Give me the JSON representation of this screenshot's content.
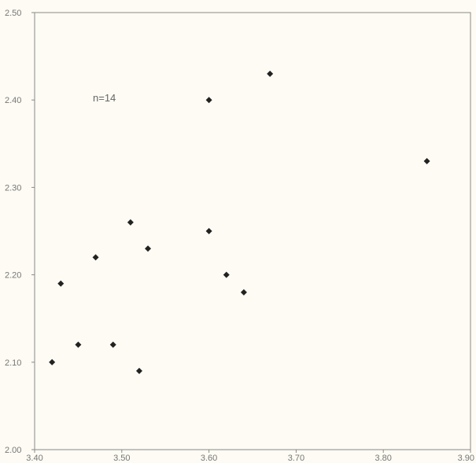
{
  "chart_data": {
    "type": "scatter",
    "title": "",
    "xlabel": "",
    "ylabel": "",
    "annotation": "n=14",
    "xlim": [
      3.4,
      3.9
    ],
    "ylim": [
      2.0,
      2.5
    ],
    "x_ticks": [
      "3.40",
      "3.50",
      "3.60",
      "3.70",
      "3.80",
      "3.90"
    ],
    "y_ticks": [
      "2.00",
      "2.10",
      "2.20",
      "2.30",
      "2.40",
      "2.50"
    ],
    "grid": false,
    "marker_color": "#222222",
    "x": [
      3.42,
      3.43,
      3.45,
      3.47,
      3.49,
      3.51,
      3.52,
      3.53,
      3.6,
      3.6,
      3.62,
      3.64,
      3.67,
      3.85
    ],
    "y": [
      2.1,
      2.19,
      2.12,
      2.22,
      2.12,
      2.26,
      2.09,
      2.23,
      2.4,
      2.25,
      2.2,
      2.18,
      2.43,
      2.33
    ]
  }
}
